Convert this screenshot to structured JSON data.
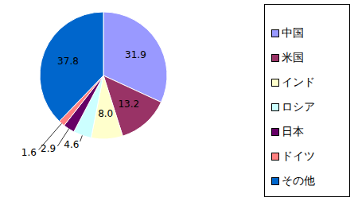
{
  "chart_data": {
    "type": "pie",
    "categories": [
      "中国",
      "米国",
      "インド",
      "ロシア",
      "日本",
      "ドイツ",
      "その他"
    ],
    "values": [
      31.9,
      13.2,
      8.0,
      4.6,
      2.9,
      1.6,
      37.8
    ],
    "value_labels": [
      "31.9",
      "13.2",
      "8.0",
      "4.6",
      "2.9",
      "1.6",
      "37.8"
    ],
    "colors": [
      "#9999ff",
      "#993366",
      "#ffffcc",
      "#ccffff",
      "#660066",
      "#ff8080",
      "#0066cc"
    ],
    "data_labels": true,
    "legend": "right"
  }
}
